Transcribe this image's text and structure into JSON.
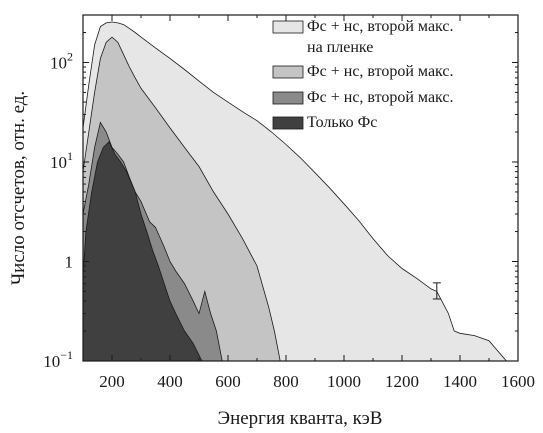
{
  "chart_data": {
    "type": "area",
    "xlabel": "Энергия кванта, кэВ",
    "ylabel": "Число отсчетов, отн. ед.",
    "xlim": [
      100,
      1600
    ],
    "ylim": [
      0.1,
      300
    ],
    "yscale": "log",
    "x_ticks": [
      "200",
      "400",
      "600",
      "800",
      "1000",
      "1200",
      "1400",
      "1600"
    ],
    "y_ticks": [
      {
        "base": "10",
        "exp": "2",
        "value": 100
      },
      {
        "base": "10",
        "exp": "1",
        "value": 10
      },
      {
        "base": "1",
        "exp": "",
        "value": 1
      },
      {
        "base": "10",
        "exp": "−1",
        "value": 0.1
      }
    ],
    "grid": false,
    "legend_position": "top-right",
    "series": [
      {
        "name_lines": [
          "Фс + нс, второй макс.",
          "на пленке"
        ],
        "color": "#e6e6e6",
        "points": [
          [
            100,
            22
          ],
          [
            120,
            60
          ],
          [
            140,
            150
          ],
          [
            160,
            230
          ],
          [
            180,
            250
          ],
          [
            200,
            255
          ],
          [
            220,
            250
          ],
          [
            240,
            240
          ],
          [
            260,
            220
          ],
          [
            280,
            200
          ],
          [
            300,
            180
          ],
          [
            350,
            140
          ],
          [
            400,
            110
          ],
          [
            450,
            85
          ],
          [
            500,
            65
          ],
          [
            550,
            50
          ],
          [
            600,
            40
          ],
          [
            650,
            32
          ],
          [
            700,
            26
          ],
          [
            750,
            20
          ],
          [
            800,
            15
          ],
          [
            850,
            11
          ],
          [
            900,
            7.8
          ],
          [
            950,
            5.5
          ],
          [
            1000,
            3.8
          ],
          [
            1050,
            2.6
          ],
          [
            1100,
            1.7
          ],
          [
            1150,
            1.15
          ],
          [
            1200,
            0.85
          ],
          [
            1250,
            0.68
          ],
          [
            1300,
            0.53
          ],
          [
            1320,
            0.5
          ],
          [
            1360,
            0.3
          ],
          [
            1380,
            0.2
          ],
          [
            1400,
            0.19
          ],
          [
            1450,
            0.18
          ],
          [
            1500,
            0.16
          ],
          [
            1560,
            0.1
          ]
        ]
      },
      {
        "name": "Фс + нс, второй макс.",
        "color": "#c4c4c4",
        "points": [
          [
            100,
            8
          ],
          [
            120,
            20
          ],
          [
            140,
            50
          ],
          [
            160,
            110
          ],
          [
            180,
            160
          ],
          [
            200,
            180
          ],
          [
            220,
            160
          ],
          [
            240,
            120
          ],
          [
            260,
            90
          ],
          [
            280,
            70
          ],
          [
            300,
            55
          ],
          [
            350,
            35
          ],
          [
            400,
            22
          ],
          [
            450,
            14
          ],
          [
            500,
            9
          ],
          [
            550,
            5
          ],
          [
            600,
            3
          ],
          [
            650,
            1.7
          ],
          [
            700,
            0.9
          ],
          [
            740,
            0.35
          ],
          [
            760,
            0.2
          ],
          [
            780,
            0.1
          ]
        ]
      },
      {
        "name": "Фс + нс, второй макс.",
        "color": "#8a8a8a",
        "points": [
          [
            100,
            3
          ],
          [
            120,
            6
          ],
          [
            140,
            14
          ],
          [
            160,
            25
          ],
          [
            180,
            20
          ],
          [
            200,
            14
          ],
          [
            220,
            12
          ],
          [
            240,
            10
          ],
          [
            260,
            7
          ],
          [
            280,
            5
          ],
          [
            300,
            4
          ],
          [
            330,
            2.5
          ],
          [
            350,
            2.2
          ],
          [
            380,
            1.4
          ],
          [
            400,
            1
          ],
          [
            420,
            0.8
          ],
          [
            450,
            0.6
          ],
          [
            480,
            0.4
          ],
          [
            500,
            0.3
          ],
          [
            520,
            0.5
          ],
          [
            540,
            0.3
          ],
          [
            560,
            0.2
          ],
          [
            580,
            0.1
          ]
        ]
      },
      {
        "name": "Только Фс",
        "color": "#404040",
        "points": [
          [
            100,
            0.7
          ],
          [
            110,
            2
          ],
          [
            130,
            5
          ],
          [
            150,
            10
          ],
          [
            170,
            14
          ],
          [
            190,
            16
          ],
          [
            210,
            12
          ],
          [
            230,
            10
          ],
          [
            250,
            8
          ],
          [
            280,
            5
          ],
          [
            300,
            3
          ],
          [
            320,
            2
          ],
          [
            340,
            1.3
          ],
          [
            360,
            0.9
          ],
          [
            380,
            0.6
          ],
          [
            400,
            0.4
          ],
          [
            420,
            0.3
          ],
          [
            450,
            0.2
          ],
          [
            480,
            0.15
          ],
          [
            510,
            0.1
          ]
        ]
      }
    ]
  }
}
